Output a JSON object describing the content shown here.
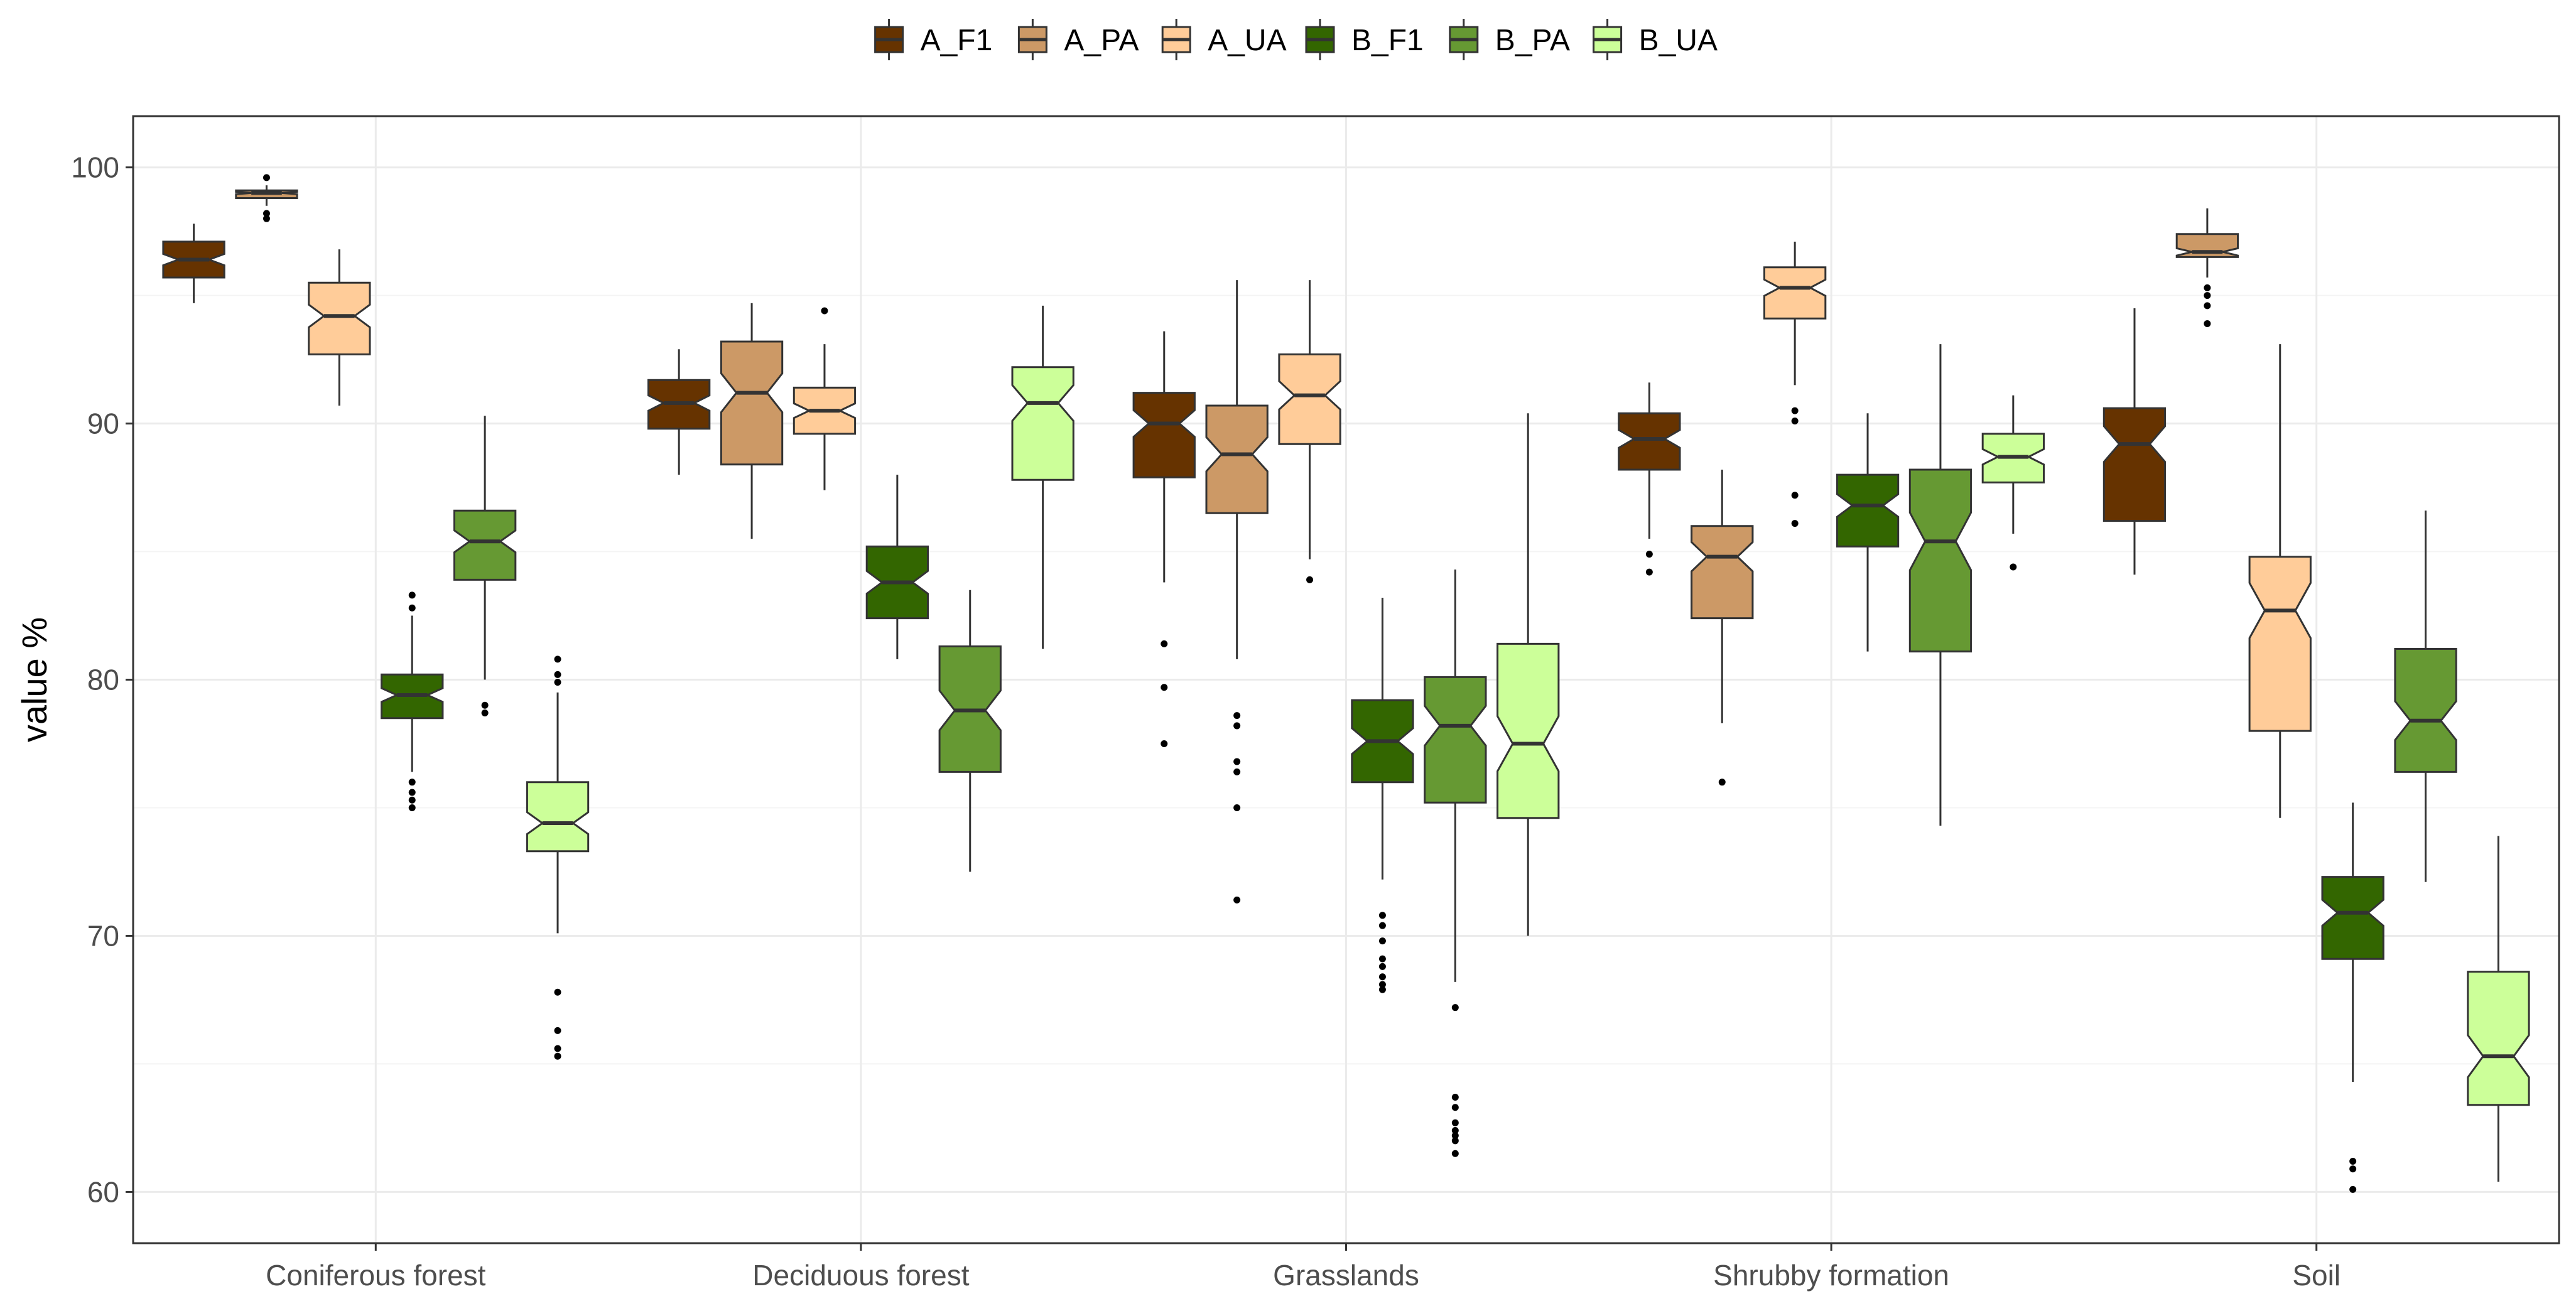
{
  "chart_data": {
    "type": "boxplot",
    "notched": true,
    "xlabel": "",
    "ylabel": "value %",
    "ylim": [
      58,
      102
    ],
    "yticks": [
      60,
      70,
      80,
      90,
      100
    ],
    "grid": true,
    "legend_position": "top",
    "categories": [
      "Coniferous forest",
      "Deciduous forest",
      "Grasslands",
      "Shrubby formation",
      "Soil"
    ],
    "series": [
      {
        "name": "A_F1",
        "color": "#663300",
        "boxes": [
          {
            "min": 94.7,
            "q1": 95.7,
            "median": 96.4,
            "q3": 97.1,
            "max": 97.8,
            "outliers": []
          },
          {
            "min": 88.0,
            "q1": 89.8,
            "median": 90.8,
            "q3": 91.7,
            "max": 92.9,
            "outliers": []
          },
          {
            "min": 83.8,
            "q1": 87.9,
            "median": 90.0,
            "q3": 91.2,
            "max": 93.6,
            "outliers": [
              81.4,
              79.7,
              77.5
            ]
          },
          {
            "min": 85.5,
            "q1": 88.2,
            "median": 89.4,
            "q3": 90.4,
            "max": 91.6,
            "outliers": [
              84.9,
              84.2
            ]
          },
          {
            "min": 84.1,
            "q1": 86.2,
            "median": 89.2,
            "q3": 90.6,
            "max": 94.5,
            "outliers": []
          }
        ]
      },
      {
        "name": "A_PA",
        "color": "#cc9966",
        "boxes": [
          {
            "min": 98.5,
            "q1": 98.8,
            "median": 99.0,
            "q3": 99.1,
            "max": 99.3,
            "outliers": [
              99.6,
              98.2,
              98.0
            ]
          },
          {
            "min": 85.5,
            "q1": 88.4,
            "median": 91.2,
            "q3": 93.2,
            "max": 94.7,
            "outliers": []
          },
          {
            "min": 80.8,
            "q1": 86.5,
            "median": 88.8,
            "q3": 90.7,
            "max": 95.6,
            "outliers": [
              78.6,
              78.2,
              76.8,
              76.4,
              75.0,
              71.4
            ]
          },
          {
            "min": 78.3,
            "q1": 82.4,
            "median": 84.8,
            "q3": 86.0,
            "max": 88.2,
            "outliers": [
              76.0
            ]
          },
          {
            "min": 95.7,
            "q1": 96.5,
            "median": 96.7,
            "q3": 97.4,
            "max": 98.4,
            "outliers": [
              95.3,
              95.0,
              94.6,
              93.9
            ]
          }
        ]
      },
      {
        "name": "A_UA",
        "color": "#ffcc99",
        "boxes": [
          {
            "min": 90.7,
            "q1": 92.7,
            "median": 94.2,
            "q3": 95.5,
            "max": 96.8,
            "outliers": []
          },
          {
            "min": 87.4,
            "q1": 89.6,
            "median": 90.5,
            "q3": 91.4,
            "max": 93.1,
            "outliers": [
              94.4
            ]
          },
          {
            "min": 84.7,
            "q1": 89.2,
            "median": 91.1,
            "q3": 92.7,
            "max": 95.6,
            "outliers": [
              83.9
            ]
          },
          {
            "min": 91.5,
            "q1": 94.1,
            "median": 95.3,
            "q3": 96.1,
            "max": 97.1,
            "outliers": [
              90.5,
              90.1,
              87.2,
              86.1
            ]
          },
          {
            "min": 74.6,
            "q1": 78.0,
            "median": 82.7,
            "q3": 84.8,
            "max": 93.1,
            "outliers": []
          }
        ]
      },
      {
        "name": "B_F1",
        "color": "#336600",
        "boxes": [
          {
            "min": 76.4,
            "q1": 78.5,
            "median": 79.4,
            "q3": 80.2,
            "max": 82.5,
            "outliers": [
              83.3,
              82.8,
              76.0,
              75.6,
              75.3,
              75.0
            ]
          },
          {
            "min": 80.8,
            "q1": 82.4,
            "median": 83.8,
            "q3": 85.2,
            "max": 88.0,
            "outliers": []
          },
          {
            "min": 72.2,
            "q1": 76.0,
            "median": 77.6,
            "q3": 79.2,
            "max": 83.2,
            "outliers": [
              70.8,
              70.4,
              69.8,
              69.1,
              68.8,
              68.4,
              68.1,
              67.9
            ]
          },
          {
            "min": 81.1,
            "q1": 85.2,
            "median": 86.8,
            "q3": 88.0,
            "max": 90.4,
            "outliers": []
          },
          {
            "min": 64.3,
            "q1": 69.1,
            "median": 70.9,
            "q3": 72.3,
            "max": 75.2,
            "outliers": [
              61.2,
              60.9,
              60.1
            ]
          }
        ]
      },
      {
        "name": "B_PA",
        "color": "#669933",
        "boxes": [
          {
            "min": 80.0,
            "q1": 83.9,
            "median": 85.4,
            "q3": 86.6,
            "max": 90.3,
            "outliers": [
              79.0,
              78.7
            ]
          },
          {
            "min": 72.5,
            "q1": 76.4,
            "median": 78.8,
            "q3": 81.3,
            "max": 83.5,
            "outliers": []
          },
          {
            "min": 68.2,
            "q1": 75.2,
            "median": 78.2,
            "q3": 80.1,
            "max": 84.3,
            "outliers": [
              67.2,
              63.7,
              63.3,
              62.7,
              62.4,
              62.2,
              62.0,
              61.5
            ]
          },
          {
            "min": 74.3,
            "q1": 81.1,
            "median": 85.4,
            "q3": 88.2,
            "max": 93.1,
            "outliers": []
          },
          {
            "min": 72.1,
            "q1": 76.4,
            "median": 78.4,
            "q3": 81.2,
            "max": 86.6,
            "outliers": []
          }
        ]
      },
      {
        "name": "B_UA",
        "color": "#ccff99",
        "boxes": [
          {
            "min": 70.1,
            "q1": 73.3,
            "median": 74.4,
            "q3": 76.0,
            "max": 79.5,
            "outliers": [
              80.8,
              80.2,
              79.9,
              67.8,
              66.3,
              65.6,
              65.3
            ]
          },
          {
            "min": 81.2,
            "q1": 87.8,
            "median": 90.8,
            "q3": 92.2,
            "max": 94.6,
            "outliers": []
          },
          {
            "min": 70.0,
            "q1": 74.6,
            "median": 77.5,
            "q3": 81.4,
            "max": 90.4,
            "outliers": []
          },
          {
            "min": 85.7,
            "q1": 87.7,
            "median": 88.7,
            "q3": 89.6,
            "max": 91.1,
            "outliers": [
              84.4
            ]
          },
          {
            "min": 60.4,
            "q1": 63.4,
            "median": 65.3,
            "q3": 68.6,
            "max": 73.9,
            "outliers": []
          }
        ]
      }
    ]
  }
}
